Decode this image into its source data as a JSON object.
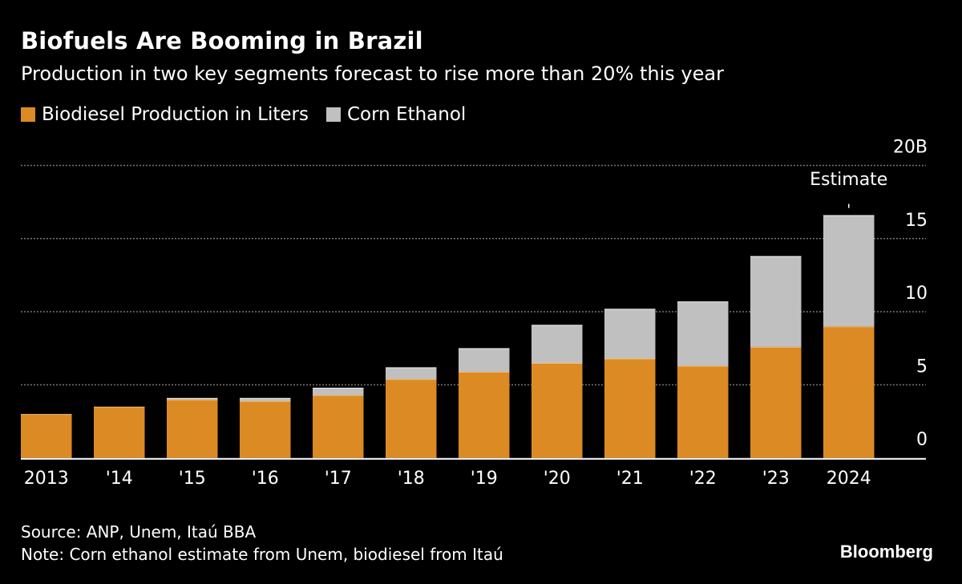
{
  "chart_data": {
    "type": "bar",
    "stacked": true,
    "title": "Biofuels Are Booming in Brazil",
    "subtitle": "Production in two key segments forecast to rise more than 20% this year",
    "categories": [
      "2013",
      "'14",
      "'15",
      "'16",
      "'17",
      "'18",
      "'19",
      "'20",
      "'21",
      "'22",
      "'23",
      "2024"
    ],
    "series": [
      {
        "name": "Biodiesel Production in Liters",
        "color": "#dc8a24",
        "values": [
          3.0,
          3.5,
          4.0,
          3.9,
          4.3,
          5.4,
          5.9,
          6.5,
          6.8,
          6.3,
          7.6,
          9.0
        ]
      },
      {
        "name": "Corn Ethanol",
        "color": "#c0c0c0",
        "values": [
          0,
          0,
          0.1,
          0.2,
          0.5,
          0.8,
          1.6,
          2.6,
          3.4,
          4.4,
          6.2,
          7.6
        ]
      }
    ],
    "ylim": [
      0,
      20
    ],
    "yticks": [
      "0",
      "5",
      "10",
      "15",
      "20B"
    ],
    "ytick_values": [
      0,
      5,
      10,
      15,
      20
    ],
    "y_axis_side": "right",
    "grid": "dotted horizontal",
    "legend_position": "top-left",
    "annotation": {
      "text": "Estimate",
      "category": "2024"
    }
  },
  "footer": {
    "source": "Source: ANP, Unem, Itaú BBA",
    "note": "Note: Corn ethanol estimate from Unem, biodiesel from Itaú",
    "logo": "Bloomberg"
  }
}
